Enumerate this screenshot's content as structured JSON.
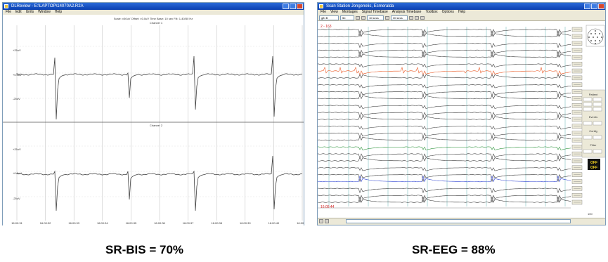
{
  "left_window": {
    "title": "DLReview - E:\\LAPTOP\\14070A2.R2A",
    "menu": [
      "File",
      "Edit",
      "Units",
      "Window",
      "Help"
    ],
    "info_line": "Scale: ±50uV Offset: ±0.0uV Time Base: 10 sec Filt: 1-40/50 Hz",
    "channel_1_label": "Channel 1",
    "channel_2_label": "Channel 2",
    "ch1_ticks": [
      "+25uV",
      "+0.0uV",
      "-25uV"
    ],
    "ch2_ticks": [
      "+25uV",
      "+0.0uV",
      "-25uV"
    ],
    "time_ticks": [
      "16:00:31",
      "16:00:32",
      "16:00:33",
      "16:00:34",
      "16:00:35",
      "16:00:36",
      "16:00:37",
      "16:00:38",
      "16:00:39",
      "16:00:40",
      "16:00:41"
    ]
  },
  "right_window": {
    "title": "Scan Station Jongenelis, Esmeralda",
    "menu": [
      "File",
      "View",
      "Montages",
      "Signal Timebase",
      "Analysis Timebase",
      "Toolbox",
      "Options",
      "Help"
    ],
    "toolbar": [
      "gfb B",
      "5b",
      "10 secs",
      "30 secs"
    ],
    "epoch_label": "2 - 163",
    "time_label": "16:05:44",
    "scale_label": "100",
    "channel_count": 26,
    "right_panel_labels": [
      "Patient",
      "Events",
      "Config",
      "Filter"
    ],
    "side_panel": [
      "OFF",
      "OFF"
    ]
  },
  "captions": {
    "left": "SR-BIS = 70%",
    "right": "SR-EEG = 88%"
  },
  "colors": {
    "titlebar": "#0a3fb0",
    "ecg_trace": "#e8501a",
    "green_trace": "#1a8a2a",
    "blue_trace": "#2a3fd0",
    "grid_line": "#3aa0a0",
    "trace": "#333333"
  }
}
